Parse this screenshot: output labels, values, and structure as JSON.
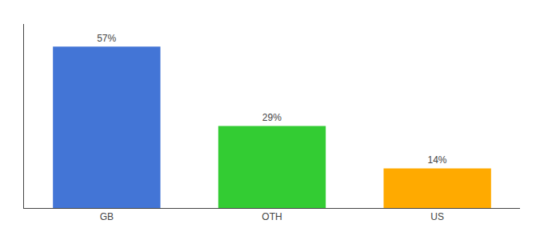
{
  "chart_data": {
    "type": "bar",
    "categories": [
      "GB",
      "OTH",
      "US"
    ],
    "values": [
      57,
      29,
      14
    ],
    "value_labels": [
      "57%",
      "29%",
      "14%"
    ],
    "colors": [
      "#4375d6",
      "#33cc33",
      "#ffaa00"
    ],
    "ylim": [
      0,
      65
    ],
    "data_labels": true,
    "tick_labels": "x",
    "grid": false
  }
}
